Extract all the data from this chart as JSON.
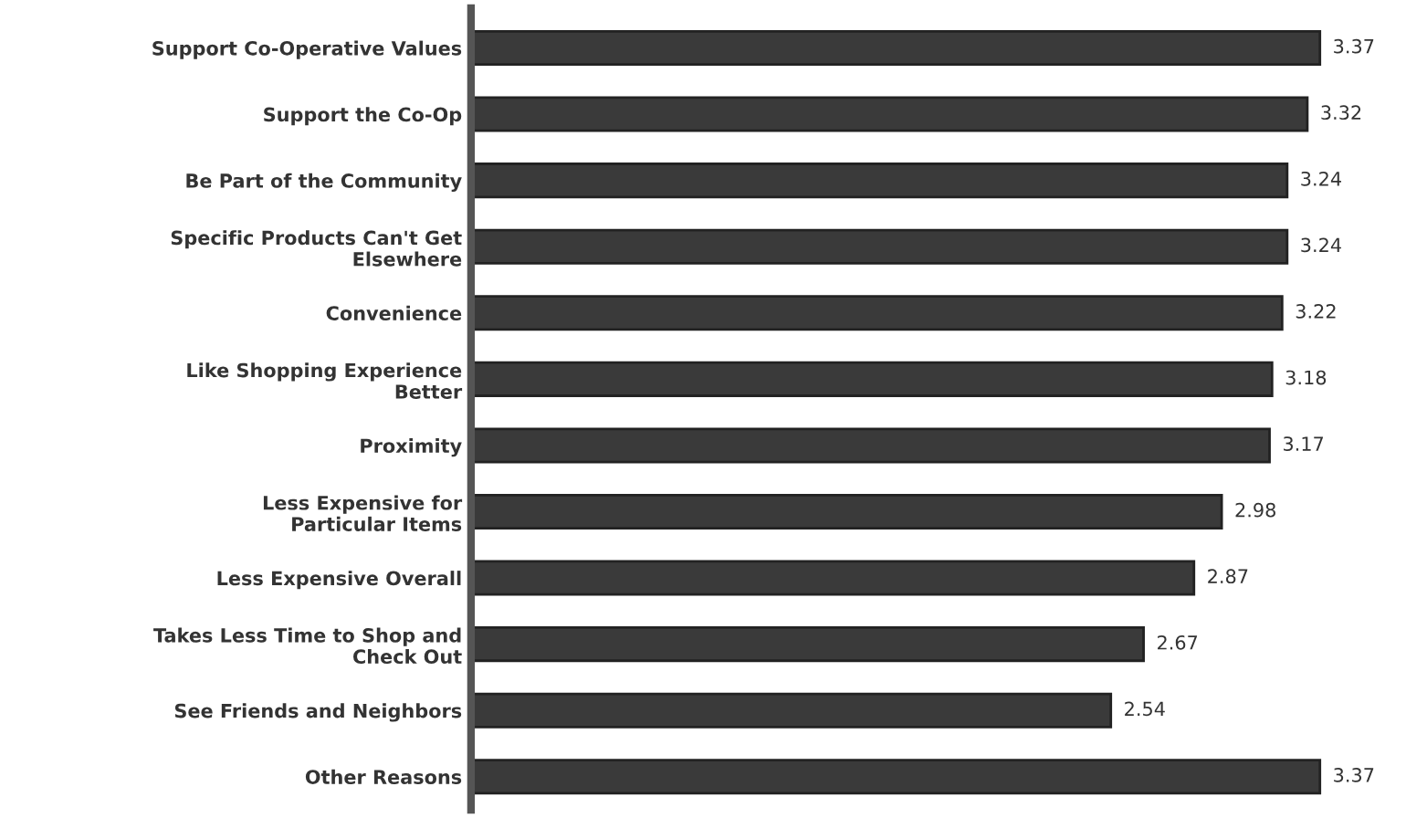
{
  "chart_data": {
    "type": "bar",
    "orientation": "horizontal",
    "categories": [
      "Support Co-Operative Values",
      "Support the Co-Op",
      "Be Part of the Community",
      "Specific Products Can't Get\nElsewhere",
      "Convenience",
      "Like Shopping Experience\nBetter",
      "Proximity",
      "Less Expensive for\nParticular Items",
      "Less Expensive Overall",
      "Takes Less Time to Shop and\nCheck Out",
      "See Friends and Neighbors",
      "Other Reasons"
    ],
    "values": [
      3.37,
      3.32,
      3.24,
      3.24,
      3.22,
      3.18,
      3.17,
      2.98,
      2.87,
      2.67,
      2.54,
      3.37
    ],
    "color": "#3a3a3a",
    "data_labels": true,
    "tick_labels": "y",
    "grid": false,
    "legend": false
  }
}
